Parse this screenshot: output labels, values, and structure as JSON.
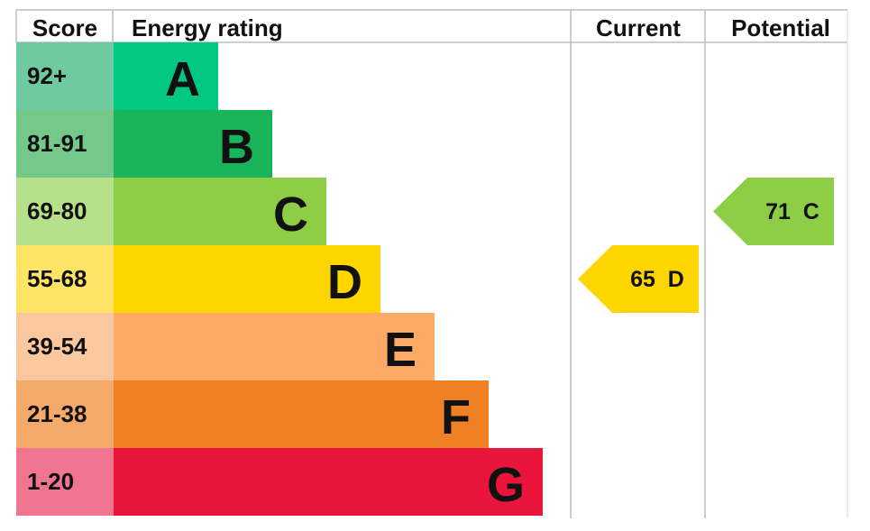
{
  "chart_data": {
    "type": "table",
    "headers": {
      "score": "Score",
      "rating": "Energy rating",
      "current": "Current",
      "potential": "Potential"
    },
    "bands": [
      {
        "letter": "A",
        "range": "92+",
        "color": "#00c781",
        "score_color": "#6fcaa0"
      },
      {
        "letter": "B",
        "range": "81-91",
        "color": "#19b459",
        "score_color": "#74c98a"
      },
      {
        "letter": "C",
        "range": "69-80",
        "color": "#8dce46",
        "score_color": "#b7e08b"
      },
      {
        "letter": "D",
        "range": "55-68",
        "color": "#ffd500",
        "score_color": "#ffe466"
      },
      {
        "letter": "E",
        "range": "39-54",
        "color": "#fcaa65",
        "score_color": "#fbc79f"
      },
      {
        "letter": "F",
        "range": "21-38",
        "color": "#ef8023",
        "score_color": "#f5a96b"
      },
      {
        "letter": "G",
        "range": "1-20",
        "color": "#e9153b",
        "score_color": "#f07590"
      }
    ],
    "current": {
      "value": 65,
      "band": "D",
      "label": "65  D",
      "color": "#ffd500"
    },
    "potential": {
      "value": 71,
      "band": "C",
      "label": "71  C",
      "color": "#8dce46"
    }
  }
}
